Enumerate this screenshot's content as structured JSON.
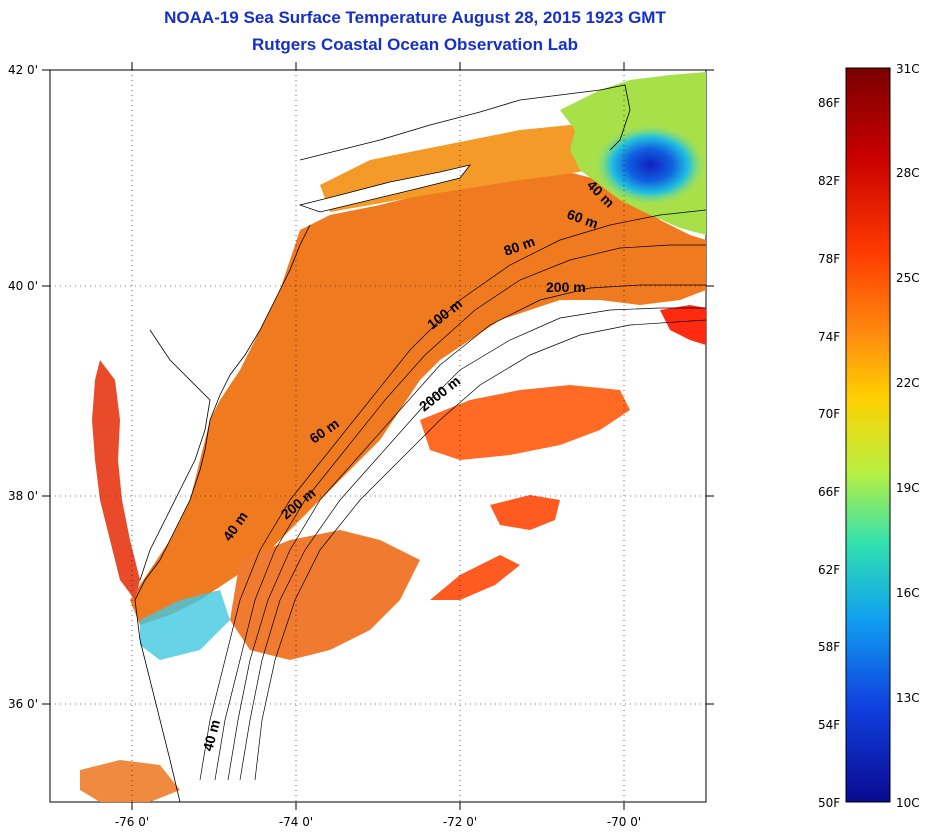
{
  "title": "NOAA-19 Sea Surface Temperature August 28, 2015 1923 GMT",
  "subtitle": "Rutgers Coastal Ocean Observation Lab",
  "axes": {
    "lat_ticks": [
      "42 0'",
      "40 0'",
      "38 0'",
      "36 0'"
    ],
    "lon_ticks": [
      "-76 0'",
      "-74 0'",
      "-72 0'",
      "-70 0'"
    ],
    "lat_range": [
      35,
      42
    ],
    "lon_range": [
      -77,
      -69
    ]
  },
  "contours": [
    {
      "label": "40 m"
    },
    {
      "label": "60 m"
    },
    {
      "label": "80 m"
    },
    {
      "label": "200 m"
    },
    {
      "label": "100 m"
    },
    {
      "label": "2000 m"
    },
    {
      "label": "60 m"
    },
    {
      "label": "200 m"
    },
    {
      "label": "40 m"
    },
    {
      "label": "40 m"
    }
  ],
  "colorbar": {
    "fahrenheit": [
      "86F",
      "82F",
      "78F",
      "74F",
      "70F",
      "66F",
      "62F",
      "58F",
      "54F",
      "50F"
    ],
    "celsius": [
      "31C",
      "28C",
      "25C",
      "22C",
      "19C",
      "16C",
      "13C",
      "10C"
    ],
    "colors": [
      "#7a0000",
      "#c80000",
      "#ff3a00",
      "#ff8a10",
      "#ffd000",
      "#b8f040",
      "#30e0b0",
      "#10a0f0",
      "#1040e0",
      "#0a0a90"
    ]
  }
}
